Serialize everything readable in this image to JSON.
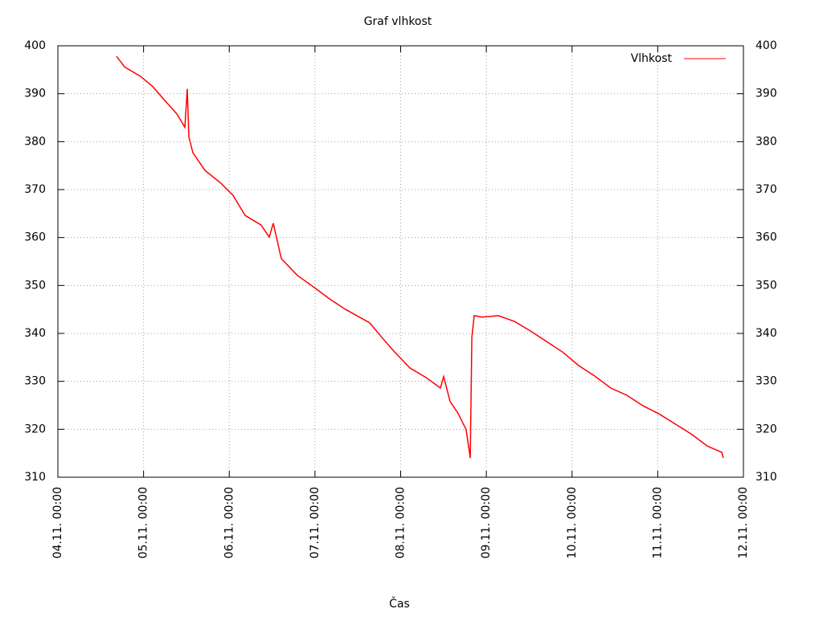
{
  "chart_data": {
    "type": "line",
    "title": "Graf vlhkost",
    "x_label": "Čas",
    "legend": "top-right",
    "grid": true,
    "xlim": [
      "04.11. 00:00",
      "12.11. 00:00"
    ],
    "xticks": [
      "04.11. 00:00",
      "05.11. 00:00",
      "06.11. 00:00",
      "07.11. 00:00",
      "08.11. 00:00",
      "09.11. 00:00",
      "10.11. 00:00",
      "11.11. 00:00",
      "12.11. 00:00"
    ],
    "ylim": [
      310,
      400
    ],
    "yticks": [
      310,
      320,
      330,
      340,
      350,
      360,
      370,
      380,
      390,
      400
    ],
    "x": [
      "04.11. 16:26",
      "04.11. 18:41",
      "04.11. 23:11",
      "05.11. 02:34",
      "05.11. 05:56",
      "05.11. 09:19",
      "05.11. 11:34",
      "05.11. 12:14",
      "05.11. 12:41",
      "05.11. 13:49",
      "05.11. 17:11",
      "05.11. 21:42",
      "06.11. 01:04",
      "06.11. 04:27",
      "06.11. 08:57",
      "06.11. 11:12",
      "06.11. 12:20",
      "06.11. 14:35",
      "06.11. 19:05",
      "06.11. 23:35",
      "07.11. 04:05",
      "07.11. 08:35",
      "07.11. 15:20",
      "07.11. 18:43",
      "07.11. 22:05",
      "08.11. 02:35",
      "08.11. 07:06",
      "08.11. 11:09",
      "08.11. 12:03",
      "08.11. 13:51",
      "08.11. 16:06",
      "08.11. 18:21",
      "08.11. 19:29",
      "08.11. 19:56",
      "08.11. 20:36",
      "08.11. 22:51",
      "09.11. 03:21",
      "09.11. 07:52",
      "09.11. 12:22",
      "09.11. 16:52",
      "09.11. 21:22",
      "10.11. 01:52",
      "10.11. 06:22",
      "10.11. 10:52",
      "10.11. 15:22",
      "10.11. 19:52",
      "11.11. 00:22",
      "11.11. 04:53",
      "11.11. 09:23",
      "11.11. 13:53",
      "11.11. 17:56",
      "11.11. 18:23"
    ],
    "series": [
      {
        "name": "Vlhkost",
        "color": "#ff0000",
        "values": [
          397.8,
          395.6,
          393.6,
          391.5,
          388.6,
          385.8,
          383,
          391,
          381,
          377.7,
          374,
          371.3,
          368.8,
          364.6,
          362.6,
          360.1,
          363,
          355.6,
          352.1,
          349.7,
          347.2,
          345,
          342.2,
          339.2,
          336.3,
          332.8,
          330.8,
          328.6,
          331,
          325.8,
          323.3,
          319.9,
          314,
          339.2,
          343.7,
          343.4,
          343.7,
          342.5,
          340.5,
          338.3,
          336.1,
          333.3,
          331.1,
          328.6,
          327.1,
          324.9,
          323.2,
          321.1,
          319,
          316.5,
          315.2,
          314
        ]
      }
    ]
  }
}
